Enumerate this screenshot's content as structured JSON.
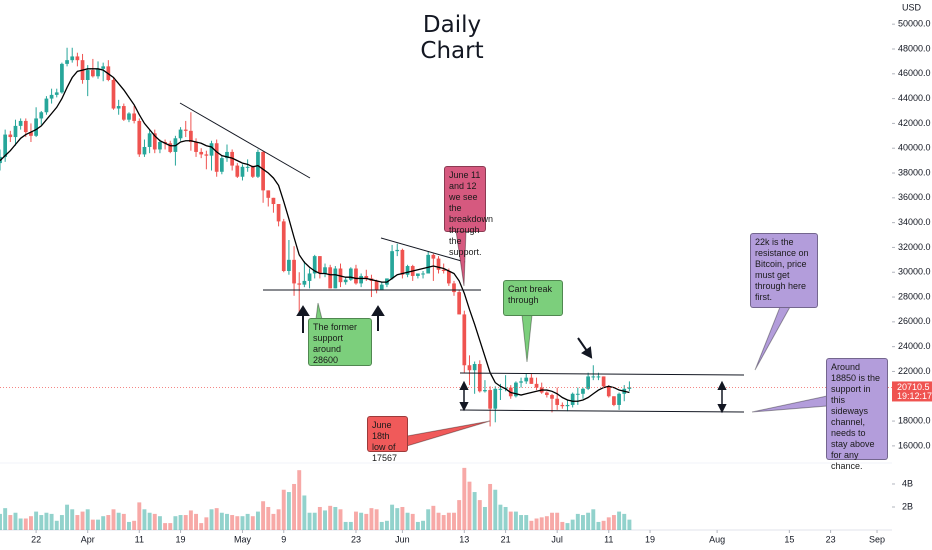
{
  "chart_data": {
    "type": "candlestick",
    "title": "Daily Chart",
    "currency": "USD",
    "up_color": "#26a69a",
    "down_color": "#ef5350",
    "xlim": [
      0,
      172.9
    ],
    "xticks": [
      {
        "value": 7,
        "label": "22"
      },
      {
        "value": 17,
        "label": "Apr"
      },
      {
        "value": 27,
        "label": "11"
      },
      {
        "value": 35,
        "label": "19"
      },
      {
        "value": 47,
        "label": "May"
      },
      {
        "value": 55,
        "label": "9"
      },
      {
        "value": 69,
        "label": "23"
      },
      {
        "value": 78,
        "label": "Jun"
      },
      {
        "value": 90,
        "label": "13"
      },
      {
        "value": 98,
        "label": "21"
      },
      {
        "value": 108,
        "label": "Jul"
      },
      {
        "value": 118,
        "label": "11"
      },
      {
        "value": 126,
        "label": "19"
      },
      {
        "value": 139,
        "label": "Aug"
      },
      {
        "value": 153,
        "label": "15"
      },
      {
        "value": 161,
        "label": "23"
      },
      {
        "value": 170,
        "label": "Sep"
      }
    ],
    "ylim": [
      14700,
      51950
    ],
    "yticks": [
      {
        "value": 16000,
        "label": "16000.0"
      },
      {
        "value": 18000,
        "label": "18000.0"
      },
      {
        "value": 20000,
        "label": "20000.0"
      },
      {
        "value": 22000,
        "label": "22000.0"
      },
      {
        "value": 24000,
        "label": "24000.0"
      },
      {
        "value": 26000,
        "label": "26000.0"
      },
      {
        "value": 28000,
        "label": "28000.0"
      },
      {
        "value": 30000,
        "label": "30000.0"
      },
      {
        "value": 32000,
        "label": "32000.0"
      },
      {
        "value": 34000,
        "label": "34000.0"
      },
      {
        "value": 36000,
        "label": "36000.0"
      },
      {
        "value": 38000,
        "label": "38000.0"
      },
      {
        "value": 40000,
        "label": "40000.0"
      },
      {
        "value": 42000,
        "label": "42000.0"
      },
      {
        "value": 44000,
        "label": "44000.0"
      },
      {
        "value": 46000,
        "label": "46000.0"
      },
      {
        "value": 48000,
        "label": "48000.0"
      },
      {
        "value": 50000,
        "label": "50000.0"
      }
    ],
    "open": [
      38800,
      39300,
      41100,
      40900,
      41800,
      42200,
      41300,
      41000,
      42400,
      42900,
      44000,
      44300,
      44500,
      46800,
      47100,
      47400,
      47100,
      45500,
      46300,
      45800,
      46400,
      46600,
      45500,
      43200,
      43400,
      42300,
      42800,
      42200,
      39500,
      40100,
      41200,
      39900,
      40500,
      40400,
      39700,
      40800,
      41500,
      41400,
      40500,
      39700,
      39500,
      39400,
      40400,
      38100,
      39200,
      39700,
      38600,
      37700,
      38500,
      38500,
      37700,
      39700,
      36600,
      36000,
      35500,
      34100,
      30100,
      31000,
      29100,
      29000,
      29300,
      29900,
      31300,
      29900,
      30400,
      28700,
      30300,
      29200,
      29400,
      30300,
      29100,
      29700,
      29500,
      29300,
      28600,
      29000,
      29500,
      31700,
      31800,
      29800,
      30500,
      29700,
      29900,
      29900,
      31400,
      31100,
      30200,
      30100,
      29100,
      28400,
      26600,
      22500,
      22100,
      22600,
      20400,
      20500,
      19000,
      20600,
      20600,
      20700,
      20000,
      21100,
      21200,
      21500,
      21000,
      20700,
      20300,
      20100,
      19800,
      19300,
      19200,
      19300,
      20200,
      20200,
      20600,
      21600,
      21600,
      21600,
      20800,
      20000,
      19300,
      20200,
      20600
    ],
    "high": [
      39900,
      41500,
      41400,
      42300,
      42400,
      42400,
      42000,
      43300,
      43000,
      44200,
      44800,
      44800,
      46900,
      48100,
      48100,
      47700,
      47600,
      46700,
      47200,
      47000,
      46900,
      47100,
      45700,
      43900,
      43600,
      42900,
      43400,
      42400,
      40700,
      41500,
      41500,
      40700,
      40700,
      40600,
      41000,
      41700,
      42200,
      42900,
      40800,
      40000,
      39800,
      40600,
      40700,
      39400,
      40300,
      39900,
      38800,
      38700,
      39100,
      38600,
      39900,
      39800,
      36600,
      36000,
      35500,
      34300,
      32600,
      32100,
      30000,
      30900,
      30300,
      31400,
      31300,
      30700,
      30600,
      30500,
      30700,
      29600,
      30400,
      30600,
      29900,
      30200,
      29800,
      29400,
      29200,
      29500,
      32200,
      32300,
      31900,
      30600,
      30600,
      29900,
      30100,
      31700,
      31500,
      31300,
      30700,
      30300,
      29300,
      28600,
      26900,
      23300,
      22800,
      22900,
      21300,
      20800,
      20800,
      21000,
      21700,
      20900,
      21200,
      21500,
      21800,
      21800,
      21500,
      21100,
      20400,
      20200,
      20700,
      19500,
      19700,
      20300,
      20700,
      20700,
      21900,
      22500,
      21900,
      21600,
      20900,
      20000,
      20300,
      20900,
      21200
    ],
    "low": [
      38200,
      38900,
      40500,
      40200,
      41500,
      40900,
      40500,
      40900,
      41900,
      42700,
      43600,
      44100,
      44400,
      46600,
      46900,
      46600,
      45200,
      44200,
      45700,
      45600,
      45400,
      45400,
      43100,
      42700,
      42200,
      42100,
      42000,
      39300,
      39300,
      39600,
      39600,
      39600,
      39900,
      39600,
      38600,
      40600,
      40900,
      39800,
      39300,
      39200,
      38300,
      38200,
      37700,
      37900,
      38900,
      38200,
      37600,
      37400,
      38100,
      37600,
      37600,
      35600,
      35300,
      34800,
      33700,
      30000,
      29800,
      28100,
      26700,
      28800,
      28700,
      29500,
      29500,
      29600,
      28700,
      28700,
      28800,
      29000,
      29300,
      29000,
      28800,
      29300,
      28000,
      28300,
      28600,
      28800,
      29400,
      31300,
      29500,
      29600,
      29300,
      29500,
      29500,
      29900,
      29300,
      29900,
      29900,
      28900,
      28100,
      26600,
      21900,
      20900,
      20200,
      20300,
      20300,
      17567,
      17900,
      19700,
      20400,
      19800,
      19900,
      20700,
      21000,
      21000,
      20500,
      20200,
      19900,
      18700,
      18900,
      19000,
      18800,
      19100,
      19300,
      19800,
      20500,
      21300,
      21300,
      20700,
      19900,
      19200,
      18900,
      19600,
      20400
    ],
    "close": [
      39300,
      41100,
      40900,
      41800,
      42200,
      41300,
      41000,
      42400,
      42900,
      44000,
      44300,
      44500,
      46800,
      47100,
      47400,
      47100,
      45500,
      46300,
      45800,
      46400,
      46600,
      45500,
      43200,
      43400,
      42300,
      42800,
      42200,
      39500,
      40100,
      41200,
      39900,
      40500,
      40400,
      39700,
      40800,
      41500,
      41400,
      40500,
      39700,
      39500,
      39400,
      40400,
      38100,
      39200,
      39700,
      38600,
      37700,
      38500,
      38500,
      37700,
      39700,
      36600,
      36000,
      35500,
      34100,
      30100,
      31000,
      29100,
      29000,
      29300,
      29900,
      31300,
      29900,
      30400,
      28700,
      30300,
      29200,
      29400,
      30300,
      29100,
      29700,
      29500,
      29300,
      28600,
      29000,
      29500,
      31700,
      31800,
      29800,
      30500,
      29700,
      29900,
      29900,
      31400,
      31100,
      30200,
      30100,
      29100,
      28400,
      26600,
      22500,
      22100,
      22600,
      20400,
      20500,
      19000,
      20600,
      20600,
      20700,
      20000,
      21100,
      21200,
      21500,
      21000,
      20700,
      20300,
      20100,
      19800,
      19300,
      19200,
      19300,
      20200,
      20200,
      20600,
      21600,
      21600,
      21600,
      20800,
      20000,
      19300,
      20200,
      20600,
      20710.5
    ],
    "volume": [
      1.4,
      1.9,
      1.3,
      1.5,
      1.0,
      1.0,
      1.2,
      1.6,
      1.3,
      1.5,
      1.4,
      0.8,
      1.3,
      2.2,
      1.8,
      1.3,
      1.6,
      1.8,
      0.9,
      0.9,
      1.2,
      1.3,
      1.8,
      1.5,
      1.4,
      0.7,
      0.8,
      2.4,
      1.8,
      1.5,
      1.4,
      1.2,
      0.6,
      0.6,
      1.2,
      1.3,
      1.3,
      1.7,
      1.4,
      0.6,
      1.1,
      1.8,
      1.9,
      1.5,
      1.4,
      1.3,
      1.2,
      1.2,
      1.4,
      1.2,
      1.6,
      2.5,
      2.0,
      1.4,
      1.8,
      3.5,
      3.3,
      4.0,
      5.2,
      3.0,
      1.5,
      1.5,
      2.0,
      1.7,
      2.1,
      2.0,
      1.8,
      0.7,
      0.7,
      1.6,
      1.5,
      1.4,
      1.9,
      1.8,
      0.7,
      0.8,
      2.2,
      1.9,
      2.0,
      1.5,
      1.4,
      0.7,
      0.8,
      1.8,
      2.1,
      1.5,
      1.3,
      1.5,
      1.5,
      2.6,
      5.4,
      4.2,
      3.3,
      2.6,
      2.0,
      4.0,
      3.5,
      2.2,
      2.0,
      1.6,
      1.6,
      1.3,
      1.3,
      0.8,
      1.0,
      1.1,
      1.2,
      1.5,
      1.5,
      0.7,
      0.6,
      0.9,
      1.4,
      1.3,
      1.5,
      1.8,
      0.7,
      0.8,
      1.1,
      1.3,
      1.6,
      1.4,
      0.9
    ],
    "volume_lim": [
      0,
      5.65
    ],
    "volume_ticks": [
      {
        "value": 4,
        "label": "4B"
      },
      {
        "value": 2,
        "label": "2B"
      }
    ],
    "ma": {
      "color": "#000000",
      "values": [
        39000,
        39400,
        39800,
        40300,
        40800,
        41100,
        41300,
        41500,
        41800,
        42300,
        42800,
        43300,
        44000,
        44900,
        45700,
        46200,
        46300,
        46400,
        46400,
        46400,
        46300,
        46000,
        45700,
        45200,
        44700,
        44100,
        43500,
        42700,
        42000,
        41500,
        41000,
        40600,
        40400,
        40200,
        40200,
        40500,
        40600,
        40600,
        40500,
        40400,
        40200,
        40100,
        39700,
        39400,
        39300,
        39200,
        39000,
        38800,
        38700,
        38500,
        38600,
        38300,
        38000,
        37600,
        37000,
        35700,
        34300,
        32800,
        31400,
        30800,
        30400,
        30100,
        29900,
        29900,
        29800,
        29800,
        29700,
        29600,
        29600,
        29500,
        29500,
        29500,
        29400,
        29300,
        29200,
        29200,
        29500,
        29800,
        29900,
        30000,
        30100,
        30200,
        30300,
        30400,
        30500,
        30400,
        30300,
        30100,
        29900,
        29300,
        28300,
        27000,
        25800,
        24500,
        23200,
        21900,
        21100,
        20800,
        20600,
        20300,
        20200,
        20100,
        20200,
        20300,
        20400,
        20500,
        20500,
        20400,
        20200,
        19900,
        19700,
        19600,
        19600,
        19700,
        19900,
        20200,
        20500,
        20700,
        20800,
        20700,
        20500,
        20400,
        20300
      ]
    },
    "countdown": "19:12:17",
    "annotations": [
      "The former support around 28600",
      "June 11 and 12 we see the breakdown through the support.",
      "Cant break through",
      "June 18th low of 17567",
      "22k is the resistance on Bitcoin, price must get through here first.",
      "Around 18850 is the support in this sideways channel, needs to stay above for any chance."
    ]
  }
}
